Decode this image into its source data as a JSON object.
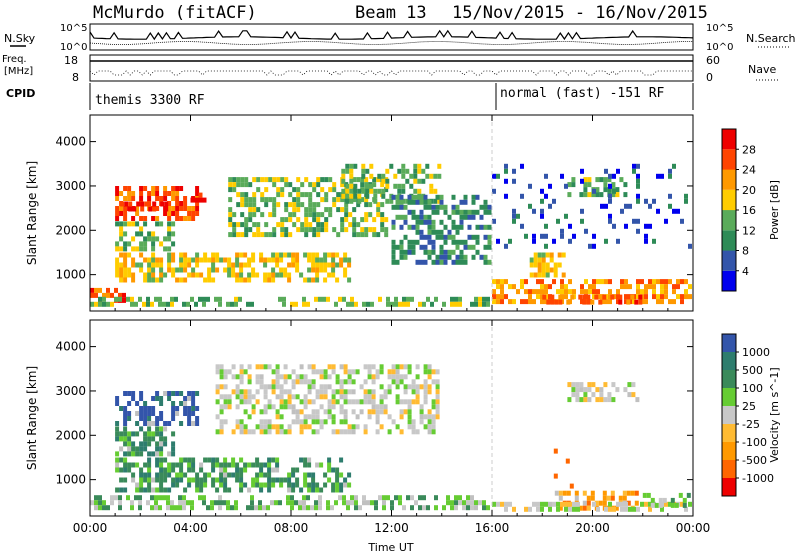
{
  "header": {
    "station": "McMurdo (fitACF)",
    "beam": "Beam 13",
    "dates": "15/Nov/2015 - 16/Nov/2015"
  },
  "params": {
    "nsky_label": "N.Sky",
    "nsky_ticks": [
      "10^5",
      "10^0"
    ],
    "nsearch_label": "N.Search",
    "nsearch_ticks": [
      "10^5",
      "10^0"
    ],
    "freq_label_1": "Freq.",
    "freq_label_2": "[MHz]",
    "freq_ticks": [
      "18",
      "8"
    ],
    "nave_label": "Nave",
    "nave_ticks": [
      "60",
      "0"
    ],
    "cpid_label": "CPID",
    "cpid_segments": [
      "themis 3300 RF",
      "normal (fast) -151 RF"
    ]
  },
  "colors": {
    "power_scale": [
      "#0000ee",
      "#3355aa",
      "#2e8b57",
      "#5aab5a",
      "#ffcc00",
      "#ff9900",
      "#ff4400",
      "#ee0000"
    ],
    "velocity_scale": [
      "#ee0000",
      "#ff6600",
      "#ff9900",
      "#ffbb33",
      "#c8c8c8",
      "#66cc33",
      "#3a8a5a",
      "#2e7d6e",
      "#3355aa"
    ],
    "ground_scatter": "#c0c0c0"
  },
  "chart_data": [
    {
      "type": "heatmap",
      "panel": "power",
      "xlabel": "",
      "ylabel": "Slant Range [km]",
      "x_ticks": [
        "00:00",
        "04:00",
        "08:00",
        "12:00",
        "16:00",
        "20:00",
        "00:00"
      ],
      "xlim_hours": [
        0,
        24
      ],
      "y_ticks": [
        1000,
        2000,
        3000,
        4000
      ],
      "ylim": [
        180,
        4600
      ],
      "colorbar": {
        "label": "Power [dB]",
        "ticks": [
          4,
          8,
          12,
          16,
          20,
          24,
          28
        ]
      },
      "regions": [
        {
          "t0": 1.0,
          "t1": 4.5,
          "r0": 2200,
          "r1": 3000,
          "level": 6
        },
        {
          "t0": 1.2,
          "t1": 3.2,
          "r0": 2350,
          "r1": 2650,
          "level": 7
        },
        {
          "t0": 4.0,
          "t1": 4.7,
          "r0": 2550,
          "r1": 2850,
          "level": 7
        },
        {
          "t0": 1.0,
          "t1": 10.5,
          "r0": 750,
          "r1": 1500,
          "level": 4
        },
        {
          "t0": 1.0,
          "t1": 3.5,
          "r0": 1500,
          "r1": 2200,
          "level": 3
        },
        {
          "t0": 5.5,
          "t1": 12.0,
          "r0": 1800,
          "r1": 3200,
          "level": 3
        },
        {
          "t0": 0.0,
          "t1": 1.5,
          "r0": 300,
          "r1": 700,
          "level": 6
        },
        {
          "t0": 0.0,
          "t1": 16.0,
          "r0": 250,
          "r1": 500,
          "level": 3
        },
        {
          "t0": 10.0,
          "t1": 14.0,
          "r0": 2500,
          "r1": 3500,
          "level": 3
        },
        {
          "t0": 12.0,
          "t1": 16.0,
          "r0": 1200,
          "r1": 2800,
          "level": 2
        },
        {
          "t0": 16.0,
          "t1": 24.0,
          "r0": 250,
          "r1": 900,
          "level": 5
        },
        {
          "t0": 18.0,
          "t1": 22.0,
          "r0": 250,
          "r1": 550,
          "level": 6
        },
        {
          "t0": 19.0,
          "t1": 21.5,
          "r0": 2700,
          "r1": 3200,
          "level": 3
        },
        {
          "t0": 17.5,
          "t1": 19.0,
          "r0": 900,
          "r1": 1500,
          "level": 4
        },
        {
          "t0": 16.0,
          "t1": 24.0,
          "r0": 1500,
          "r1": 3500,
          "level": 1
        }
      ]
    },
    {
      "type": "heatmap",
      "panel": "velocity",
      "xlabel": "Time UT",
      "ylabel": "Slant Range [km]",
      "x_ticks": [
        "00:00",
        "04:00",
        "08:00",
        "12:00",
        "16:00",
        "20:00",
        "00:00"
      ],
      "xlim_hours": [
        0,
        24
      ],
      "y_ticks": [
        1000,
        2000,
        3000,
        4000
      ],
      "ylim": [
        180,
        4600
      ],
      "colorbar": {
        "label": "Velocity [m s^-1]",
        "ticks": [
          1000,
          500,
          100,
          25,
          -25,
          -100,
          -500,
          -1000
        ]
      },
      "regions": [
        {
          "t0": 1.0,
          "t1": 4.5,
          "r0": 2200,
          "r1": 3000,
          "level": 8
        },
        {
          "t0": 1.0,
          "t1": 10.5,
          "r0": 650,
          "r1": 1500,
          "level": 6
        },
        {
          "t0": 1.0,
          "t1": 3.5,
          "r0": 1500,
          "r1": 2200,
          "level": 6
        },
        {
          "t0": 5.0,
          "t1": 14.0,
          "r0": 2000,
          "r1": 3600,
          "level": 4
        },
        {
          "t0": 0.0,
          "t1": 16.0,
          "r0": 250,
          "r1": 650,
          "level": 5
        },
        {
          "t0": 19.0,
          "t1": 22.0,
          "r0": 2700,
          "r1": 3200,
          "level": 4
        },
        {
          "t0": 18.5,
          "t1": 22.0,
          "r0": 250,
          "r1": 750,
          "level": 2
        },
        {
          "t0": 18.3,
          "t1": 19.3,
          "r0": 750,
          "r1": 1700,
          "level": 1
        },
        {
          "t0": 16.0,
          "t1": 24.0,
          "r0": 250,
          "r1": 500,
          "level": 4
        },
        {
          "t0": 22.0,
          "t1": 24.0,
          "r0": 250,
          "r1": 700,
          "level": 5
        }
      ]
    }
  ]
}
